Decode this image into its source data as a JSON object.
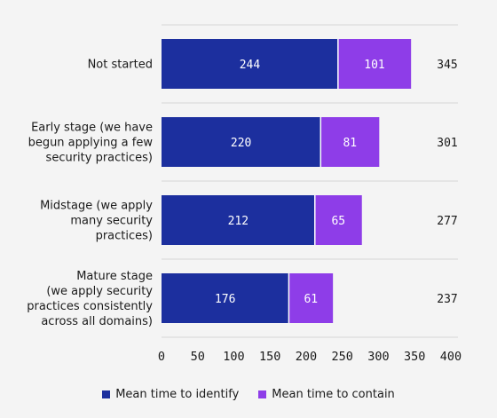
{
  "chart_data": {
    "type": "bar",
    "orientation": "horizontal",
    "stacked": true,
    "categories": [
      [
        "Not started"
      ],
      [
        "Early stage (we have",
        "begun applying a few",
        "security practices)"
      ],
      [
        "Midstage (we apply",
        "many security",
        "practices)"
      ],
      [
        "Mature stage",
        "(we apply security",
        "practices consistently",
        "across all domains)"
      ]
    ],
    "series": [
      {
        "name": "Mean time to identify",
        "color": "#1c2f9e",
        "values": [
          244,
          220,
          212,
          176
        ]
      },
      {
        "name": "Mean time to contain",
        "color": "#8e3de8",
        "values": [
          101,
          81,
          65,
          61
        ]
      }
    ],
    "totals": [
      345,
      301,
      277,
      237
    ],
    "xlim": [
      0,
      400
    ],
    "xticks": [
      0,
      50,
      100,
      150,
      200,
      250,
      300,
      350,
      400
    ],
    "grid": "horizontal separators between categories",
    "legend_position": "bottom"
  }
}
